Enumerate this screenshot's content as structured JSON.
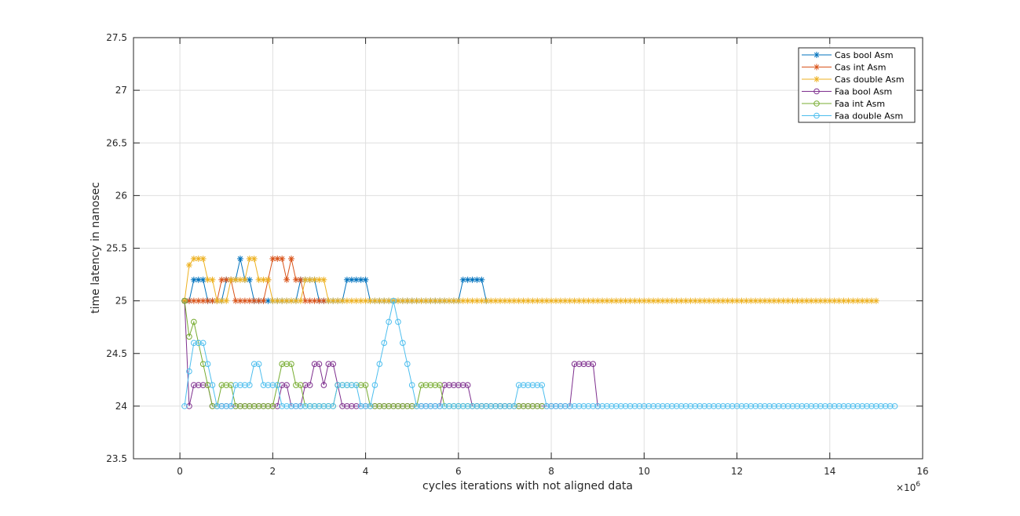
{
  "chart_data": {
    "type": "line",
    "xlabel": "cycles iterations with not aligned data",
    "ylabel": "time latency in nanosec",
    "x_exponent_label": "×10",
    "x_exponent_power": "6",
    "xlim": [
      -1,
      16
    ],
    "ylim": [
      23.5,
      27.5
    ],
    "x_ticks": [
      0,
      2,
      4,
      6,
      8,
      10,
      12,
      14,
      16
    ],
    "y_ticks": [
      23.5,
      24,
      24.5,
      25,
      25.5,
      26,
      26.5,
      27,
      27.5
    ],
    "x_tick_labels": [
      "0",
      "2",
      "4",
      "6",
      "8",
      "10",
      "12",
      "14",
      "16"
    ],
    "y_tick_labels": [
      "23.5",
      "24",
      "24.5",
      "25",
      "25.5",
      "26",
      "26.5",
      "27",
      "27.5"
    ],
    "grid": true,
    "legend_position": "top-right",
    "x_start": 0.1,
    "x_step": 0.1,
    "series": [
      {
        "name": "Cas bool Asm",
        "color": "#0072BD",
        "marker": "asterisk",
        "values": [
          25,
          25,
          25.2,
          25.2,
          25.2,
          25,
          25,
          25,
          25,
          25.2,
          25.2,
          25.2,
          25.4,
          25.2,
          25.2,
          25,
          25,
          25,
          25,
          25,
          25,
          25,
          25,
          25,
          25,
          25.2,
          25.2,
          25.2,
          25.2,
          25,
          25,
          25,
          25,
          25,
          25,
          25.2,
          25.2,
          25.2,
          25.2,
          25.2,
          25,
          25,
          25,
          25,
          25,
          25,
          25,
          25,
          25,
          25,
          25,
          25,
          25,
          25,
          25,
          25,
          25,
          25,
          25,
          25,
          25.2,
          25.2,
          25.2,
          25.2,
          25.2,
          25
        ]
      },
      {
        "name": "Cas int Asm",
        "color": "#D95319",
        "marker": "asterisk",
        "values": [
          25,
          25,
          25,
          25,
          25,
          25,
          25,
          25,
          25.2,
          25.2,
          25.2,
          25,
          25,
          25,
          25,
          25,
          25,
          25,
          25.2,
          25.4,
          25.4,
          25.4,
          25.2,
          25.4,
          25.2,
          25.2,
          25,
          25,
          25,
          25,
          25
        ]
      },
      {
        "name": "Cas double Asm",
        "color": "#EDB120",
        "marker": "asterisk",
        "values": [
          25,
          25.34,
          25.4,
          25.4,
          25.4,
          25.2,
          25.2,
          25,
          25,
          25,
          25.2,
          25.2,
          25.2,
          25.2,
          25.4,
          25.4,
          25.2,
          25.2,
          25.2,
          25,
          25,
          25,
          25,
          25,
          25,
          25,
          25.2,
          25.2,
          25.2,
          25.2,
          25.2,
          25,
          25,
          25,
          25,
          25,
          25,
          25,
          25,
          25,
          25,
          25,
          25,
          25,
          25,
          25,
          25,
          25,
          25,
          25,
          25,
          25,
          25,
          25,
          25,
          25,
          25,
          25,
          25,
          25,
          25,
          25,
          25,
          25,
          25,
          25,
          25,
          25,
          25,
          25,
          25,
          25,
          25,
          25,
          25,
          25,
          25,
          25,
          25,
          25,
          25,
          25,
          25,
          25,
          25,
          25,
          25,
          25,
          25,
          25,
          25,
          25,
          25,
          25,
          25,
          25,
          25,
          25,
          25,
          25,
          25,
          25,
          25,
          25,
          25,
          25,
          25,
          25,
          25,
          25,
          25,
          25,
          25,
          25,
          25,
          25,
          25,
          25,
          25,
          25,
          25,
          25,
          25,
          25,
          25,
          25,
          25,
          25,
          25,
          25,
          25,
          25,
          25,
          25,
          25,
          25,
          25,
          25,
          25,
          25,
          25,
          25,
          25,
          25,
          25,
          25,
          25,
          25,
          25,
          25
        ]
      },
      {
        "name": "Faa bool Asm",
        "color": "#7E2F8E",
        "marker": "circle",
        "values": [
          25,
          24,
          24.2,
          24.2,
          24.2,
          24.2,
          24,
          24,
          24,
          24,
          24,
          24,
          24,
          24,
          24,
          24,
          24,
          24,
          24,
          24,
          24,
          24.2,
          24.2,
          24,
          24,
          24,
          24.2,
          24.2,
          24.4,
          24.4,
          24.2,
          24.4,
          24.4,
          24.2,
          24,
          24,
          24,
          24,
          24,
          24,
          24,
          24,
          24,
          24,
          24,
          24,
          24,
          24,
          24,
          24,
          24,
          24,
          24,
          24,
          24,
          24,
          24.2,
          24.2,
          24.2,
          24.2,
          24.2,
          24.2,
          24,
          24,
          24,
          24,
          24,
          24,
          24,
          24,
          24,
          24,
          24,
          24,
          24,
          24,
          24,
          24,
          24,
          24,
          24,
          24,
          24,
          24,
          24.4,
          24.4,
          24.4,
          24.4,
          24.4,
          24
        ]
      },
      {
        "name": "Faa int Asm",
        "color": "#77AC30",
        "marker": "circle",
        "values": [
          25,
          24.66,
          24.8,
          24.6,
          24.4,
          24.2,
          24,
          24,
          24.2,
          24.2,
          24.2,
          24,
          24,
          24,
          24,
          24,
          24,
          24,
          24,
          24,
          24.2,
          24.4,
          24.4,
          24.4,
          24.2,
          24.2,
          24,
          24,
          24,
          24,
          24,
          24,
          24,
          24.2,
          24.2,
          24.2,
          24.2,
          24.2,
          24.2,
          24.2,
          24,
          24,
          24,
          24,
          24,
          24,
          24,
          24,
          24,
          24,
          24,
          24.2,
          24.2,
          24.2,
          24.2,
          24.2,
          24,
          24,
          24,
          24,
          24,
          24,
          24,
          24,
          24,
          24,
          24,
          24,
          24,
          24,
          24,
          24,
          24,
          24,
          24,
          24,
          24,
          24
        ]
      },
      {
        "name": "Faa double Asm",
        "color": "#4DBEEE",
        "marker": "circle",
        "values": [
          24,
          24.33,
          24.6,
          24.6,
          24.6,
          24.4,
          24.2,
          24,
          24,
          24,
          24,
          24.2,
          24.2,
          24.2,
          24.2,
          24.4,
          24.4,
          24.2,
          24.2,
          24.2,
          24.2,
          24,
          24,
          24,
          24,
          24,
          24,
          24,
          24,
          24,
          24,
          24,
          24,
          24.2,
          24.2,
          24.2,
          24.2,
          24.2,
          24,
          24,
          24,
          24.2,
          24.4,
          24.6,
          24.8,
          25,
          24.8,
          24.6,
          24.4,
          24.2,
          24,
          24,
          24,
          24,
          24,
          24,
          24,
          24,
          24,
          24,
          24,
          24,
          24,
          24,
          24,
          24,
          24,
          24,
          24,
          24,
          24,
          24,
          24.2,
          24.2,
          24.2,
          24.2,
          24.2,
          24.2,
          24,
          24,
          24,
          24,
          24,
          24,
          24,
          24,
          24,
          24,
          24,
          24,
          24,
          24,
          24,
          24,
          24,
          24,
          24,
          24,
          24,
          24,
          24,
          24,
          24,
          24,
          24,
          24,
          24,
          24,
          24,
          24,
          24,
          24,
          24,
          24,
          24,
          24,
          24,
          24,
          24,
          24,
          24,
          24,
          24,
          24,
          24,
          24,
          24,
          24,
          24,
          24,
          24,
          24,
          24,
          24,
          24,
          24,
          24,
          24,
          24,
          24,
          24,
          24,
          24,
          24,
          24,
          24,
          24,
          24,
          24,
          24,
          24,
          24,
          24,
          24
        ]
      }
    ]
  }
}
